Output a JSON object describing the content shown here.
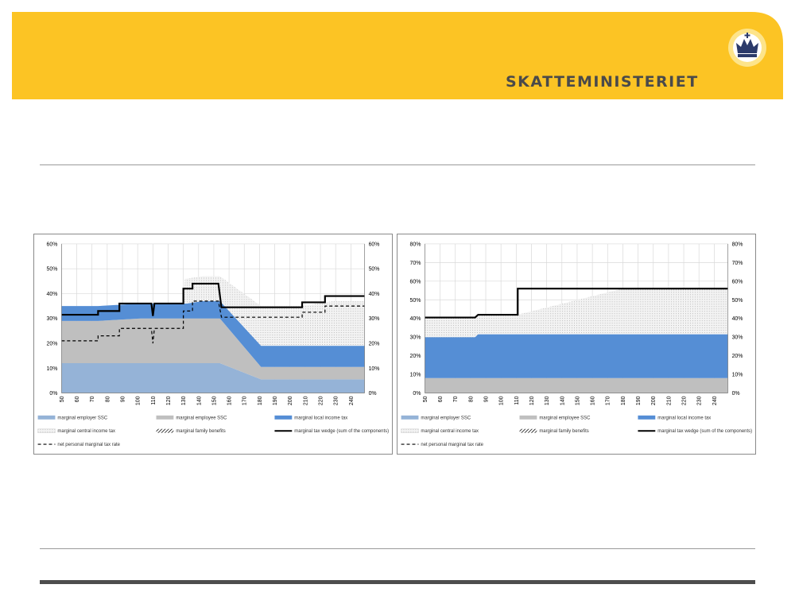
{
  "header": {
    "brand_text": "SKATTEMINISTERIET",
    "banner_color": "#fcc424",
    "logo_ring_color": "#fde48a",
    "logo_bg_color": "#ffffff"
  },
  "legend_labels": [
    "marginal employer SSC",
    "marginal employee SSC",
    "marginal local income tax",
    "marginal central income tax",
    "marginal family benefits",
    "marginal tax wedge (sum of the components)",
    "net personal marginal tax rate"
  ],
  "colors": {
    "employer_ssc": "#95b3d7",
    "employee_ssc": "#bfbfbf",
    "local_tax": "#558ed5",
    "central_tax": "#e8e8e8",
    "tax_wedge": "#000000"
  },
  "chart_data": [
    {
      "type": "area",
      "categories": [
        "50",
        "60",
        "70",
        "80",
        "90",
        "100",
        "110",
        "120",
        "130",
        "140",
        "150",
        "160",
        "170",
        "180",
        "190",
        "200",
        "210",
        "220",
        "230",
        "240"
      ],
      "x_range": [
        50,
        249
      ],
      "ylim": [
        0,
        60
      ],
      "y_ticks": [
        "0%",
        "10%",
        "20%",
        "30%",
        "40%",
        "50%",
        "60%"
      ],
      "secondary_y_ticks": [
        "0%",
        "10%",
        "20%",
        "30%",
        "40%",
        "50%",
        "60%"
      ],
      "grid": true,
      "legend_position": "bottom",
      "series": [
        {
          "name": "marginal employer SSC",
          "role": "stack",
          "color": "#95b3d7",
          "x": [
            50,
            154,
            154,
            249
          ],
          "y": [
            12,
            12,
            5.5,
            5.5
          ]
        },
        {
          "name": "marginal employee SSC",
          "role": "stack",
          "color": "#bfbfbf",
          "x": [
            50,
            74,
            74,
            154,
            154,
            249
          ],
          "y": [
            17,
            17,
            18,
            18,
            5,
            5
          ]
        },
        {
          "name": "marginal local income tax",
          "role": "stack",
          "color": "#558ed5",
          "x": [
            50,
            74,
            74,
            132,
            132,
            154,
            154,
            249
          ],
          "y": [
            6,
            6,
            6,
            6,
            7,
            7,
            8.5,
            8.5
          ]
        },
        {
          "name": "marginal central income tax",
          "role": "stack",
          "color": "#e8e8e8",
          "x": [
            50,
            130,
            130,
            154,
            154,
            208,
            208,
            249
          ],
          "y": [
            0,
            0,
            10,
            10,
            16,
            16,
            18,
            18
          ]
        },
        {
          "name": "marginal tax wedge (sum of the components)",
          "role": "line",
          "color": "#000000",
          "x": [
            50,
            74,
            74,
            88,
            88,
            109,
            110,
            111,
            130,
            130,
            136,
            136,
            153,
            155,
            208,
            208,
            223,
            223,
            249
          ],
          "y": [
            31.5,
            31.5,
            33,
            33,
            36,
            36,
            31,
            36,
            36,
            42,
            42,
            44,
            44,
            34.5,
            34.5,
            36.5,
            36.5,
            39,
            39
          ]
        },
        {
          "name": "net personal marginal tax rate",
          "role": "dash",
          "color": "#000000",
          "x": [
            50,
            74,
            74,
            88,
            88,
            109,
            110,
            111,
            130,
            130,
            136,
            136,
            153,
            155,
            208,
            208,
            223,
            223,
            249
          ],
          "y": [
            21,
            21,
            23,
            23,
            26,
            26,
            20,
            26,
            26,
            33,
            33,
            37,
            37,
            30.5,
            30.5,
            32.5,
            32.5,
            35,
            35
          ]
        }
      ]
    },
    {
      "type": "area",
      "categories": [
        "50",
        "60",
        "70",
        "80",
        "90",
        "100",
        "110",
        "120",
        "130",
        "140",
        "150",
        "160",
        "170",
        "180",
        "190",
        "200",
        "210",
        "220",
        "230",
        "240"
      ],
      "x_range": [
        50,
        249
      ],
      "ylim": [
        0,
        80
      ],
      "y_ticks": [
        "0%",
        "10%",
        "20%",
        "30%",
        "40%",
        "50%",
        "60%",
        "70%",
        "80%"
      ],
      "secondary_y_ticks": [
        "0%",
        "10%",
        "20%",
        "30%",
        "40%",
        "50%",
        "60%",
        "70%",
        "80%"
      ],
      "grid": true,
      "legend_position": "bottom",
      "series": [
        {
          "name": "marginal employer SSC",
          "role": "stack",
          "color": "#95b3d7",
          "x": [
            50,
            249
          ],
          "y": [
            0,
            0
          ]
        },
        {
          "name": "marginal employee SSC",
          "role": "stack",
          "color": "#bfbfbf",
          "x": [
            50,
            249
          ],
          "y": [
            8,
            8
          ]
        },
        {
          "name": "marginal local income tax",
          "role": "stack",
          "color": "#558ed5",
          "x": [
            50,
            83,
            85,
            249
          ],
          "y": [
            22,
            22,
            23.5,
            23.5
          ]
        },
        {
          "name": "marginal central income tax",
          "role": "stack",
          "color": "#e8e8e8",
          "x": [
            50,
            83,
            85,
            111,
            111,
            249
          ],
          "y": [
            10.5,
            10.5,
            10.5,
            10.5,
            24.5,
            24.5
          ]
        },
        {
          "name": "marginal tax wedge (sum of the components)",
          "role": "line",
          "color": "#000000",
          "x": [
            50,
            83,
            85,
            111,
            111,
            249
          ],
          "y": [
            40.5,
            40.5,
            42,
            42,
            56,
            56
          ]
        }
      ]
    }
  ]
}
